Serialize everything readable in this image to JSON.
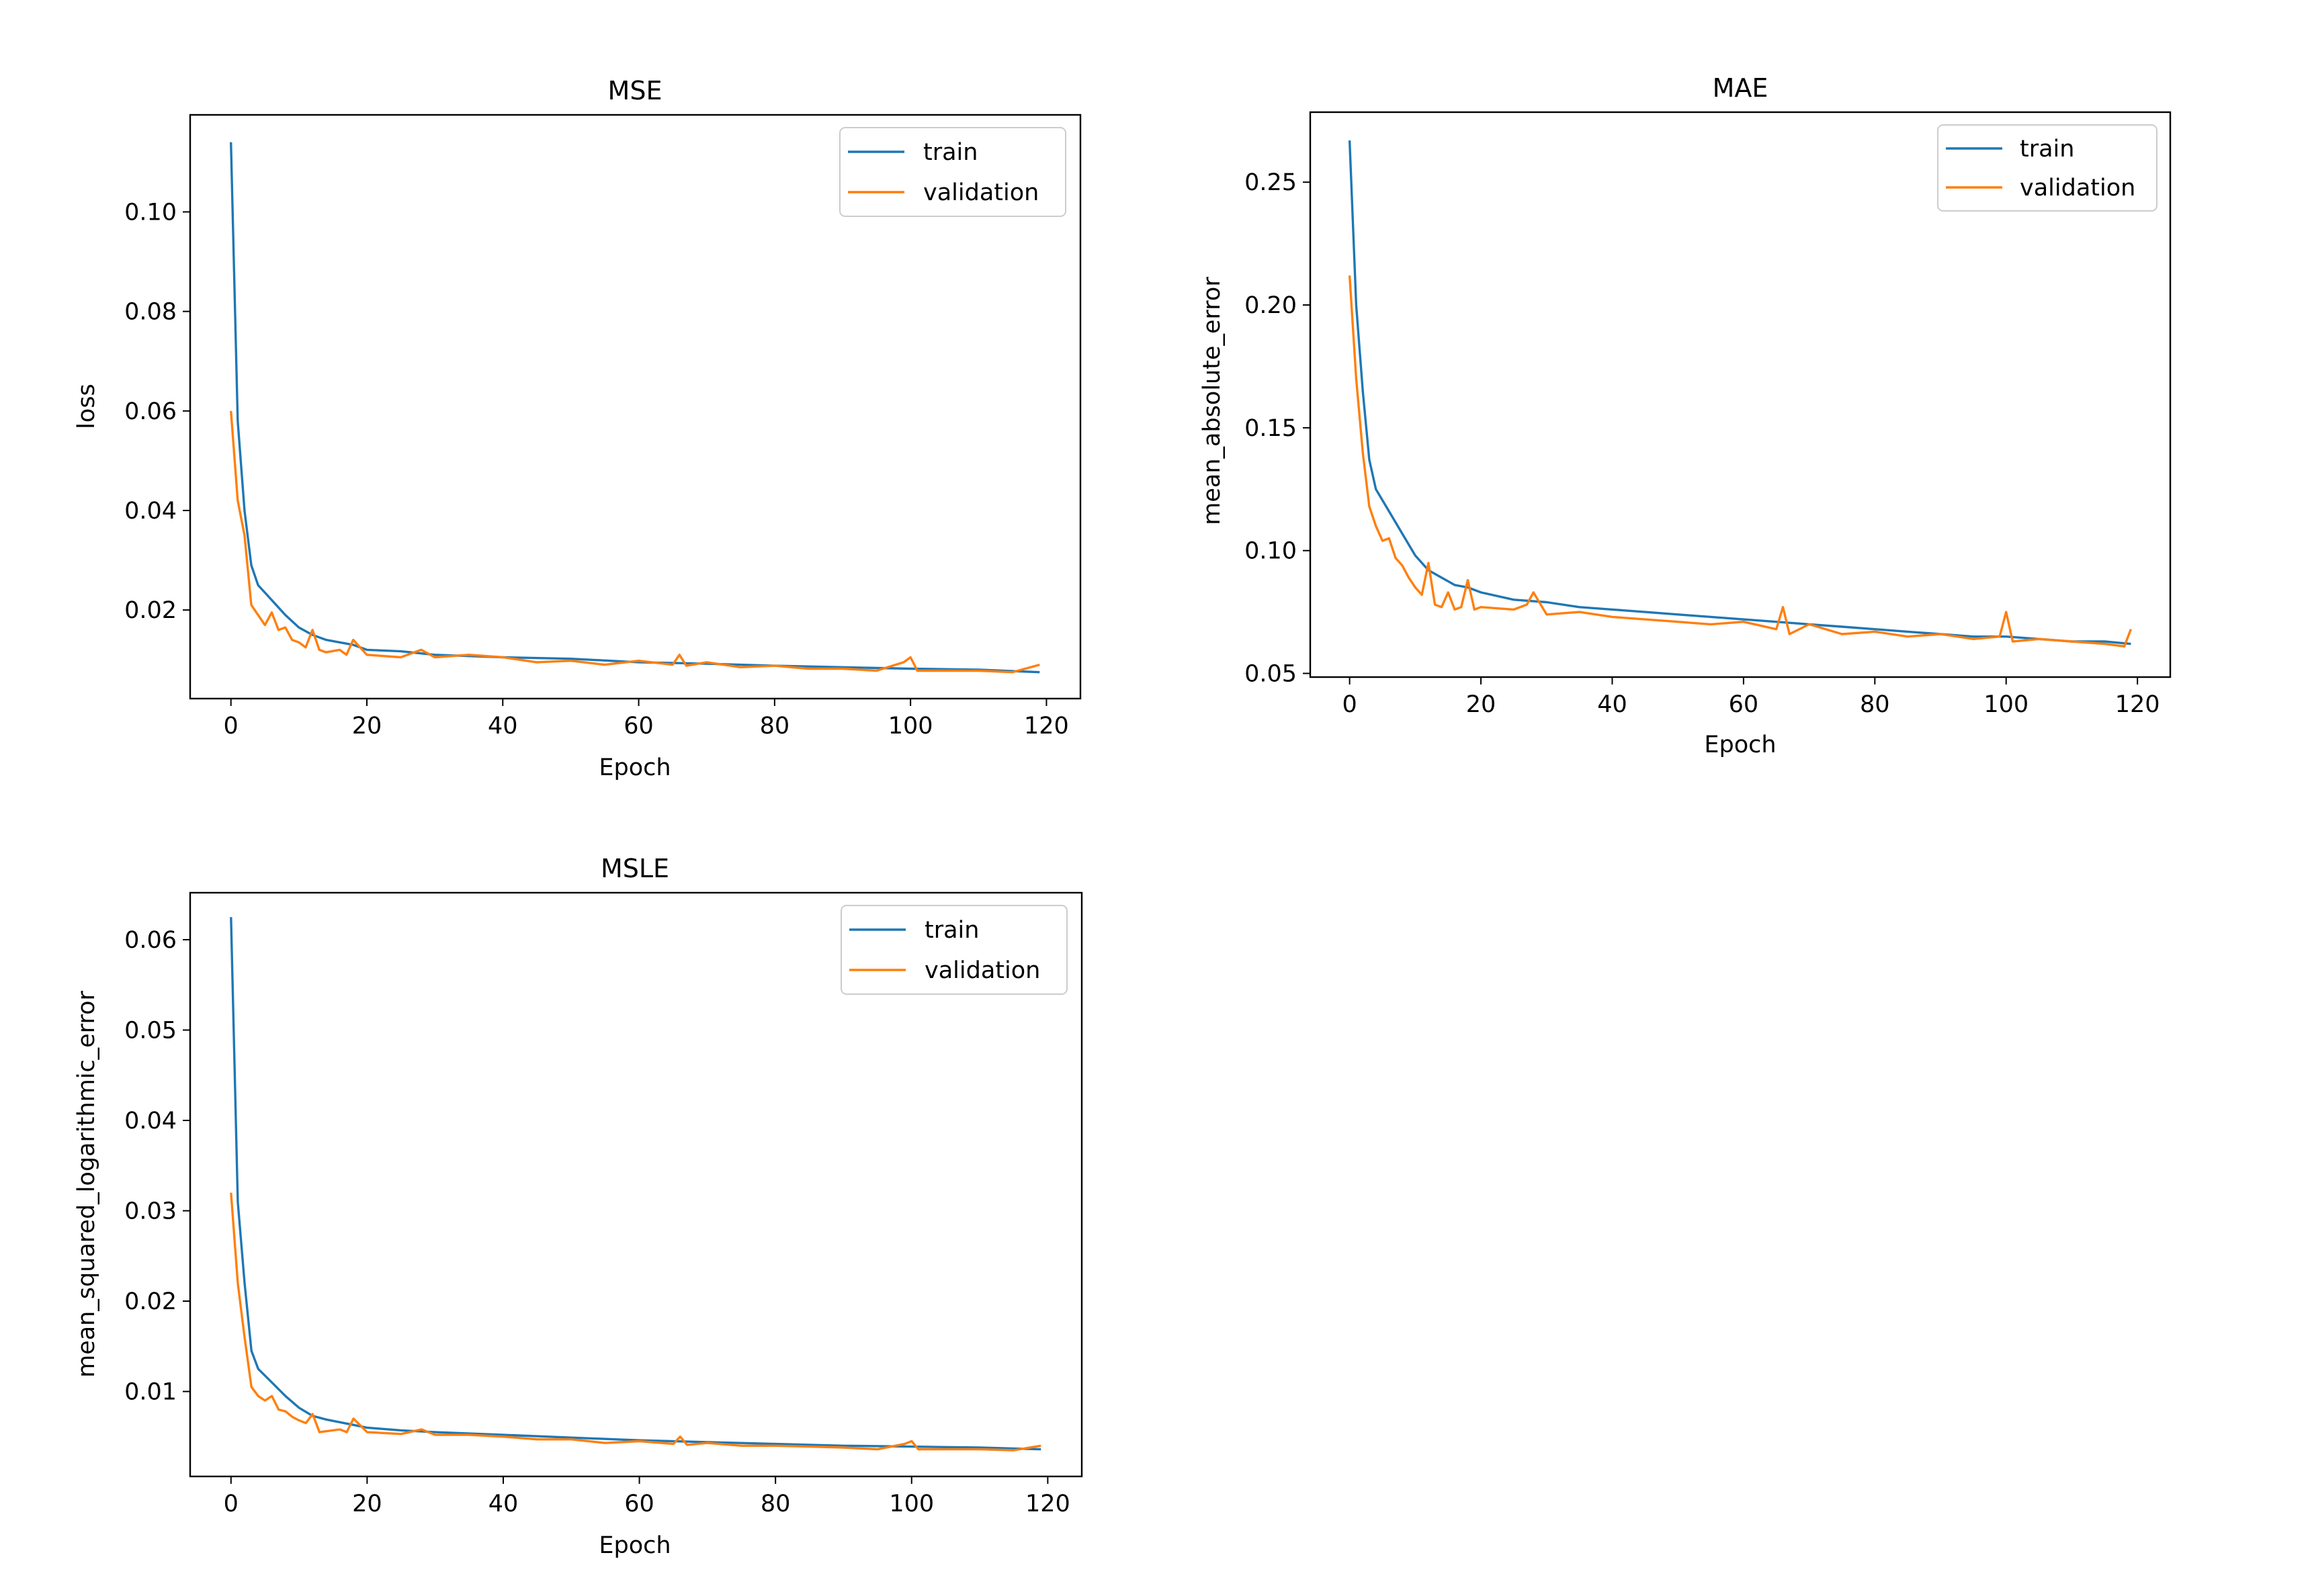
{
  "colors": {
    "train": "#1f77b4",
    "validation": "#ff7f0e"
  },
  "chart_data": [
    {
      "id": "mse",
      "type": "line",
      "title": "MSE",
      "xlabel": "Epoch",
      "ylabel": "loss",
      "xlim": [
        -6,
        125
      ],
      "ylim": [
        0.0022,
        0.1195
      ],
      "xticks": [
        0,
        20,
        40,
        60,
        80,
        100,
        120
      ],
      "xtick_labels": [
        "0",
        "20",
        "40",
        "60",
        "80",
        "100",
        "120"
      ],
      "yticks": [
        0.02,
        0.04,
        0.06,
        0.08,
        0.1
      ],
      "ytick_labels": [
        "0.02",
        "0.04",
        "0.06",
        "0.08",
        "0.10"
      ],
      "grid": false,
      "legend": {
        "position": "top-right",
        "entries": [
          "train",
          "validation"
        ]
      },
      "series": [
        {
          "name": "train",
          "x": [
            0,
            1,
            2,
            3,
            4,
            6,
            8,
            10,
            12,
            14,
            16,
            18,
            20,
            25,
            30,
            40,
            50,
            60,
            70,
            80,
            90,
            100,
            110,
            119
          ],
          "y": [
            0.114,
            0.058,
            0.04,
            0.029,
            0.025,
            0.022,
            0.019,
            0.0165,
            0.015,
            0.014,
            0.0135,
            0.013,
            0.012,
            0.0117,
            0.011,
            0.0105,
            0.0102,
            0.0095,
            0.0092,
            0.0088,
            0.0085,
            0.0082,
            0.008,
            0.0075
          ]
        },
        {
          "name": "validation",
          "x": [
            0,
            1,
            2,
            3,
            4,
            5,
            6,
            7,
            8,
            9,
            10,
            11,
            12,
            13,
            14,
            16,
            17,
            18,
            20,
            25,
            28,
            30,
            35,
            40,
            45,
            50,
            55,
            60,
            65,
            66,
            67,
            70,
            75,
            80,
            85,
            90,
            95,
            99,
            100,
            101,
            105,
            110,
            115,
            119
          ],
          "y": [
            0.06,
            0.042,
            0.035,
            0.021,
            0.019,
            0.017,
            0.0195,
            0.016,
            0.0165,
            0.014,
            0.0135,
            0.0125,
            0.016,
            0.012,
            0.0115,
            0.012,
            0.011,
            0.014,
            0.011,
            0.0105,
            0.012,
            0.0105,
            0.011,
            0.0105,
            0.0095,
            0.0098,
            0.009,
            0.0098,
            0.009,
            0.011,
            0.0088,
            0.0095,
            0.0085,
            0.0088,
            0.0082,
            0.0082,
            0.0078,
            0.0095,
            0.0105,
            0.0078,
            0.0078,
            0.0078,
            0.0075,
            0.009
          ]
        }
      ]
    },
    {
      "id": "mae",
      "type": "line",
      "title": "MAE",
      "xlabel": "Epoch",
      "ylabel": "mean_absolute_error",
      "xlim": [
        -6,
        125
      ],
      "ylim": [
        0.0485,
        0.2785
      ],
      "xticks": [
        0,
        20,
        40,
        60,
        80,
        100,
        120
      ],
      "xtick_labels": [
        "0",
        "20",
        "40",
        "60",
        "80",
        "100",
        "120"
      ],
      "yticks": [
        0.05,
        0.1,
        0.15,
        0.2,
        0.25
      ],
      "ytick_labels": [
        "0.05",
        "0.10",
        "0.15",
        "0.20",
        "0.25"
      ],
      "grid": false,
      "legend": {
        "position": "top-right",
        "entries": [
          "train",
          "validation"
        ]
      },
      "series": [
        {
          "name": "train",
          "x": [
            0,
            1,
            2,
            3,
            4,
            6,
            8,
            10,
            12,
            14,
            16,
            18,
            20,
            25,
            30,
            35,
            40,
            45,
            50,
            55,
            60,
            65,
            70,
            75,
            80,
            85,
            90,
            95,
            100,
            105,
            110,
            115,
            119
          ],
          "y": [
            0.267,
            0.2,
            0.165,
            0.137,
            0.125,
            0.116,
            0.107,
            0.098,
            0.092,
            0.089,
            0.086,
            0.085,
            0.083,
            0.08,
            0.079,
            0.077,
            0.076,
            0.075,
            0.074,
            0.073,
            0.072,
            0.071,
            0.07,
            0.069,
            0.068,
            0.067,
            0.066,
            0.065,
            0.065,
            0.064,
            0.063,
            0.063,
            0.062
          ]
        },
        {
          "name": "validation",
          "x": [
            0,
            1,
            2,
            3,
            4,
            5,
            6,
            7,
            8,
            9,
            10,
            11,
            12,
            13,
            14,
            15,
            16,
            17,
            18,
            19,
            20,
            25,
            27,
            28,
            30,
            35,
            40,
            45,
            50,
            55,
            60,
            65,
            66,
            67,
            70,
            75,
            80,
            85,
            90,
            95,
            99,
            100,
            101,
            105,
            110,
            115,
            118,
            119
          ],
          "y": [
            0.212,
            0.17,
            0.14,
            0.118,
            0.11,
            0.104,
            0.105,
            0.097,
            0.094,
            0.089,
            0.085,
            0.082,
            0.095,
            0.078,
            0.077,
            0.083,
            0.076,
            0.077,
            0.088,
            0.076,
            0.077,
            0.076,
            0.078,
            0.083,
            0.074,
            0.075,
            0.073,
            0.072,
            0.071,
            0.07,
            0.071,
            0.068,
            0.077,
            0.066,
            0.07,
            0.066,
            0.067,
            0.065,
            0.066,
            0.064,
            0.065,
            0.075,
            0.063,
            0.064,
            0.063,
            0.062,
            0.061,
            0.068
          ]
        }
      ]
    },
    {
      "id": "msle",
      "type": "line",
      "title": "MSLE",
      "xlabel": "Epoch",
      "ylabel": "mean_squared_logarithmic_error",
      "xlim": [
        -6,
        125
      ],
      "ylim": [
        0.0006,
        0.0652
      ],
      "xticks": [
        0,
        20,
        40,
        60,
        80,
        100,
        120
      ],
      "xtick_labels": [
        "0",
        "20",
        "40",
        "60",
        "80",
        "100",
        "120"
      ],
      "yticks": [
        0.01,
        0.02,
        0.03,
        0.04,
        0.05,
        0.06
      ],
      "ytick_labels": [
        "0.01",
        "0.02",
        "0.03",
        "0.04",
        "0.05",
        "0.06"
      ],
      "grid": false,
      "legend": {
        "position": "top-right",
        "entries": [
          "train",
          "validation"
        ]
      },
      "series": [
        {
          "name": "train",
          "x": [
            0,
            1,
            2,
            3,
            4,
            6,
            8,
            10,
            12,
            14,
            16,
            18,
            20,
            25,
            30,
            40,
            50,
            60,
            70,
            80,
            90,
            100,
            110,
            119
          ],
          "y": [
            0.0625,
            0.031,
            0.022,
            0.0145,
            0.0125,
            0.011,
            0.0095,
            0.0082,
            0.0073,
            0.0069,
            0.0066,
            0.0063,
            0.006,
            0.0057,
            0.0055,
            0.0052,
            0.0049,
            0.0046,
            0.0044,
            0.0042,
            0.004,
            0.0039,
            0.0038,
            0.0036
          ]
        },
        {
          "name": "validation",
          "x": [
            0,
            1,
            2,
            3,
            4,
            5,
            6,
            7,
            8,
            9,
            10,
            11,
            12,
            13,
            14,
            16,
            17,
            18,
            20,
            25,
            28,
            30,
            35,
            40,
            45,
            50,
            55,
            60,
            65,
            66,
            67,
            70,
            75,
            80,
            85,
            90,
            95,
            99,
            100,
            101,
            105,
            110,
            115,
            119
          ],
          "y": [
            0.032,
            0.022,
            0.016,
            0.0105,
            0.0095,
            0.009,
            0.0095,
            0.008,
            0.0078,
            0.0072,
            0.0068,
            0.0065,
            0.0075,
            0.0055,
            0.0056,
            0.0058,
            0.0055,
            0.007,
            0.0055,
            0.0053,
            0.0058,
            0.0052,
            0.0052,
            0.005,
            0.0047,
            0.0047,
            0.0043,
            0.0045,
            0.0042,
            0.005,
            0.0041,
            0.0043,
            0.004,
            0.004,
            0.0039,
            0.0038,
            0.0036,
            0.0042,
            0.0045,
            0.0036,
            0.0036,
            0.0036,
            0.0035,
            0.004
          ]
        }
      ]
    }
  ]
}
